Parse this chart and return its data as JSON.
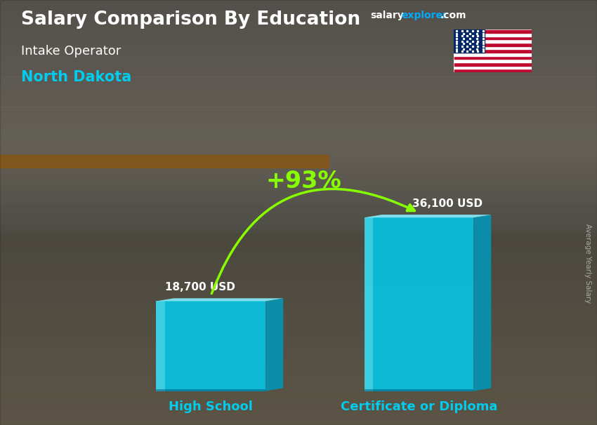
{
  "title_main": "Salary Comparison By Education",
  "subtitle1": "Intake Operator",
  "subtitle2": "North Dakota",
  "categories": [
    "High School",
    "Certificate or Diploma"
  ],
  "values": [
    18700,
    36100
  ],
  "value_labels": [
    "18,700 USD",
    "36,100 USD"
  ],
  "pct_change": "+93%",
  "bar_face_color": "#00CCEE",
  "bar_top_color": "#88EEFF",
  "bar_side_color": "#0099BB",
  "bar_alpha": 0.85,
  "ylabel_rotated": "Average Yearly Salary",
  "text_color_white": "#FFFFFF",
  "text_color_cyan": "#00CCEE",
  "text_color_green": "#88FF00",
  "arrow_color": "#88FF00",
  "salary_color": "#FFFFFF",
  "explorer_color": "#00AAFF",
  "dotcom_color": "#FFFFFF",
  "bg_top": "#5a6070",
  "bg_bottom": "#7a7060",
  "xlim": [
    -0.3,
    2.1
  ],
  "ylim": [
    0,
    46000
  ],
  "bar_positions": [
    0.25,
    1.2
  ],
  "bar_width": 0.5,
  "bar_depth_x": 0.08,
  "bar_depth_y": 2000
}
